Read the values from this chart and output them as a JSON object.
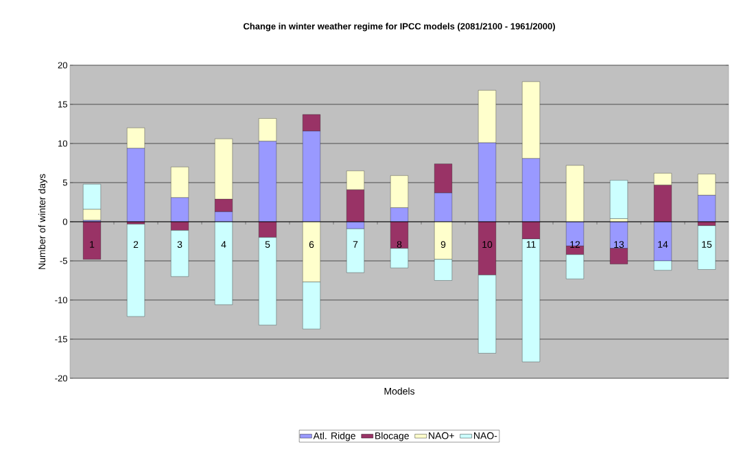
{
  "chart_data": {
    "type": "bar",
    "stacked": true,
    "title": "Change in winter weather regime for IPCC models (2081/2100 - 1961/2000)",
    "xlabel": "Models",
    "ylabel": "Number of  winter days",
    "categories": [
      "1",
      "2",
      "3",
      "4",
      "5",
      "6",
      "7",
      "8",
      "9",
      "10",
      "11",
      "12",
      "13",
      "14",
      "15"
    ],
    "series": [
      {
        "name": "Atl. Ridge",
        "color": "#9999ff",
        "values": [
          0.2,
          9.4,
          3.1,
          1.3,
          10.3,
          11.6,
          -0.9,
          1.8,
          3.7,
          10.1,
          8.1,
          -3.1,
          -3.4,
          -5.0,
          3.4
        ]
      },
      {
        "name": "Blocage",
        "color": "#993366",
        "values": [
          -4.8,
          -0.3,
          -1.1,
          1.6,
          -2.0,
          2.1,
          4.1,
          -3.4,
          3.7,
          -6.8,
          -2.2,
          -1.1,
          -2.0,
          4.7,
          -0.5
        ]
      },
      {
        "name": "NAO+",
        "color": "#ffffcc",
        "values": [
          1.4,
          2.6,
          3.9,
          7.7,
          2.9,
          -7.7,
          2.4,
          4.1,
          -4.8,
          6.7,
          9.8,
          7.2,
          0.4,
          1.5,
          2.7
        ]
      },
      {
        "name": "NAO-",
        "color": "#ccffff",
        "values": [
          3.2,
          -11.8,
          -5.9,
          -10.6,
          -11.2,
          -6.0,
          -5.6,
          -2.5,
          -2.7,
          -10.0,
          -15.7,
          -3.1,
          4.9,
          -1.2,
          -5.6
        ]
      }
    ],
    "ylim": [
      -20,
      20
    ],
    "yticks": [
      -20,
      -15,
      -10,
      -5,
      0,
      5,
      10,
      15,
      20
    ],
    "grid": "y",
    "legend": "bottom"
  }
}
